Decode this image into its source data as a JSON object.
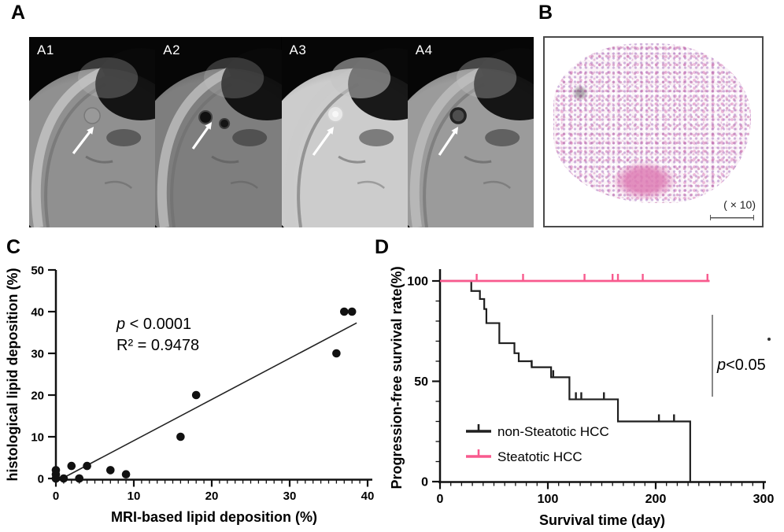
{
  "panels": {
    "a": {
      "label": "A",
      "sub_labels": [
        "A1",
        "A2",
        "A3",
        "A4"
      ]
    },
    "b": {
      "label": "B",
      "magnification": "( × 10)"
    },
    "c": {
      "label": "C"
    },
    "d": {
      "label": "D"
    }
  },
  "chart_data": [
    {
      "id": "panel_c_scatter",
      "type": "scatter",
      "xlabel": "MRI-based lipid deposition (%)",
      "ylabel": "histological lipid deposition (%)",
      "xlim": [
        0,
        40
      ],
      "ylim": [
        0,
        50
      ],
      "xticks": [
        0,
        10,
        20,
        30,
        40
      ],
      "yticks": [
        0,
        10,
        20,
        30,
        40,
        50
      ],
      "x_minor_step": 1,
      "grid": false,
      "points": [
        [
          0,
          0
        ],
        [
          0,
          0
        ],
        [
          0,
          1
        ],
        [
          0,
          2
        ],
        [
          1,
          0
        ],
        [
          2,
          3
        ],
        [
          3,
          0
        ],
        [
          3,
          0
        ],
        [
          4,
          3
        ],
        [
          7,
          2
        ],
        [
          9,
          1
        ],
        [
          16,
          10
        ],
        [
          18,
          20
        ],
        [
          36,
          30
        ],
        [
          37,
          40
        ],
        [
          38,
          40
        ]
      ],
      "regression_line": {
        "x1": 0.8,
        "y1": 0,
        "x2": 38.6,
        "y2": 37.3
      },
      "annotations": {
        "p_italic": "p",
        "p_rest": " < 0.0001",
        "r2_text": "R² = 0.9478"
      },
      "point_color": "#111111"
    },
    {
      "id": "panel_d_km",
      "type": "line",
      "subtype": "kaplan-meier",
      "xlabel": "Survival time (day)",
      "ylabel": "Progression-free survival rate(%)",
      "xlim": [
        0,
        300
      ],
      "ylim": [
        0,
        100
      ],
      "xticks": [
        0,
        100,
        200,
        300
      ],
      "yticks": [
        0,
        50,
        100
      ],
      "minor_step_x": 10,
      "minor_step_y": 10,
      "grid": false,
      "legend_position": "inside-bottom-left",
      "series": [
        {
          "name": "non-Steatotic HCC",
          "color": "#1f1f1f",
          "steps": [
            [
              0,
              100
            ],
            [
              29,
              95
            ],
            [
              37,
              91
            ],
            [
              41,
              86
            ],
            [
              43,
              79
            ],
            [
              55,
              69
            ],
            [
              69,
              64
            ],
            [
              73,
              60
            ],
            [
              85,
              57
            ],
            [
              103,
              52
            ],
            [
              120,
              41
            ],
            [
              165,
              30
            ],
            [
              232,
              0
            ]
          ],
          "censors": [
            [
              85,
              57
            ],
            [
              105,
              52
            ],
            [
              126,
              41
            ],
            [
              131,
              41
            ],
            [
              152,
              41
            ],
            [
              203,
              30
            ],
            [
              217,
              30
            ]
          ]
        },
        {
          "name": "Steatotic HCC",
          "color": "#f85a8e",
          "steps": [
            [
              0,
              100
            ],
            [
              250,
              100
            ]
          ],
          "censors": [
            [
              34,
              100
            ],
            [
              77,
              100
            ],
            [
              134,
              100
            ],
            [
              160,
              100
            ],
            [
              165,
              100
            ],
            [
              188,
              100
            ],
            [
              248,
              100
            ]
          ]
        }
      ],
      "p_annotation": {
        "p_italic": "p",
        "p_rest": "<0.05"
      }
    }
  ]
}
